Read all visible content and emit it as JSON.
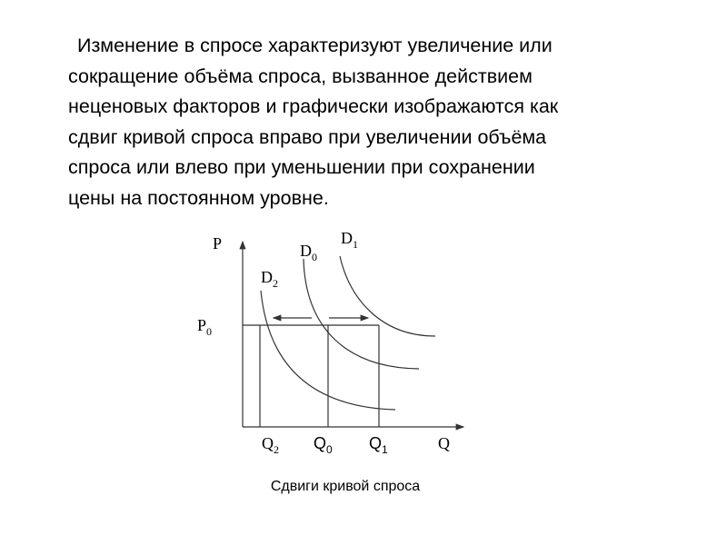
{
  "paragraph": {
    "lines": [
      "Изменение в спросе характеризуют увеличение или",
      "сокращение объёма спроса, вызванное действием",
      "неценовых факторов и графически изображаются как",
      "сдвиг кривой спроса вправо при увеличении объёма",
      "спроса или влево при уменьшении при сохранении",
      "цены на постоянном уровне."
    ]
  },
  "diagram": {
    "y_axis_label": "P",
    "x_axis_label": "Q",
    "price_label": {
      "main": "P",
      "sub": "0"
    },
    "curves": [
      {
        "main": "D",
        "sub": "0"
      },
      {
        "main": "D",
        "sub": "1"
      },
      {
        "main": "D",
        "sub": "2"
      }
    ],
    "quantities": [
      {
        "main": "Q",
        "sub": "2"
      },
      {
        "main": "Q",
        "sub": "0"
      },
      {
        "main": "Q",
        "sub": "1"
      }
    ],
    "line_color": "#333333"
  },
  "caption": "Сдвиги кривой спроса"
}
